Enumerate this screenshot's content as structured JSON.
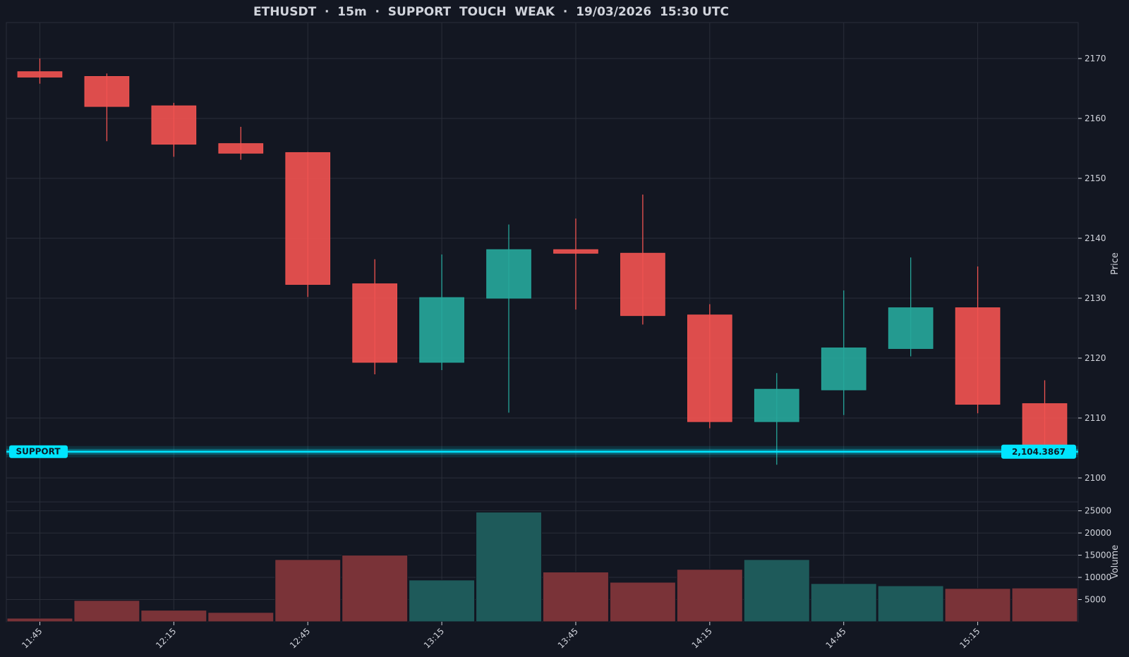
{
  "colors": {
    "background": "#131722",
    "grid": "#2a2e39",
    "bull": "#26a69a",
    "bear": "#ef5350",
    "bull_volume": "#1e5a5a",
    "bear_volume": "#7a3338",
    "support": "#00e5ff",
    "text": "#d1d4dc"
  },
  "chart_data": {
    "type": "candlestick",
    "title": "ETHUSDT  ·  15m  ·  SUPPORT  TOUCH  WEAK  ·  19/03/2026  15:30 UTC",
    "symbol": "ETHUSDT",
    "interval": "15m",
    "price_axis": {
      "label": "Price",
      "range": [
        2096,
        2176
      ],
      "ticks": [
        "2100",
        "2110",
        "2120",
        "2130",
        "2140",
        "2150",
        "2160",
        "2170"
      ],
      "position": "right"
    },
    "volume_axis": {
      "label": "Volume",
      "range": [
        0,
        27000
      ],
      "ticks": [
        "5000",
        "10000",
        "15000",
        "20000",
        "25000"
      ],
      "position": "right"
    },
    "x_axis": {
      "tick_labels": [
        "11:45",
        "12:15",
        "12:45",
        "13:15",
        "13:45",
        "14:15",
        "14:45",
        "15:15"
      ],
      "tick_candle_index": [
        0,
        2,
        4,
        6,
        8,
        10,
        12,
        14
      ]
    },
    "grid": true,
    "candles": [
      {
        "time": "11:45",
        "open": 2167.8,
        "high": 2170.0,
        "low": 2165.8,
        "close": 2166.9,
        "volume": 800
      },
      {
        "time": "12:00",
        "open": 2167.0,
        "high": 2167.5,
        "low": 2156.2,
        "close": 2162.0,
        "volume": 4800
      },
      {
        "time": "12:15",
        "open": 2162.1,
        "high": 2162.6,
        "low": 2153.6,
        "close": 2155.7,
        "volume": 2600
      },
      {
        "time": "12:30",
        "open": 2155.8,
        "high": 2158.6,
        "low": 2153.1,
        "close": 2154.2,
        "volume": 2100
      },
      {
        "time": "12:45",
        "open": 2154.3,
        "high": 2154.4,
        "low": 2130.2,
        "close": 2132.3,
        "volume": 14000
      },
      {
        "time": "13:00",
        "open": 2132.4,
        "high": 2136.5,
        "low": 2117.3,
        "close": 2119.3,
        "volume": 15000
      },
      {
        "time": "13:15",
        "open": 2119.3,
        "high": 2137.3,
        "low": 2118.0,
        "close": 2130.1,
        "volume": 9400
      },
      {
        "time": "13:30",
        "open": 2130.0,
        "high": 2142.3,
        "low": 2110.9,
        "close": 2138.1,
        "volume": 24700
      },
      {
        "time": "13:45",
        "open": 2138.1,
        "high": 2143.3,
        "low": 2128.1,
        "close": 2137.5,
        "volume": 11200
      },
      {
        "time": "14:00",
        "open": 2137.5,
        "high": 2147.3,
        "low": 2125.6,
        "close": 2127.1,
        "volume": 8900
      },
      {
        "time": "14:15",
        "open": 2127.2,
        "high": 2129.0,
        "low": 2108.3,
        "close": 2109.4,
        "volume": 11800
      },
      {
        "time": "14:30",
        "open": 2109.4,
        "high": 2117.5,
        "low": 2102.2,
        "close": 2114.8,
        "volume": 14000
      },
      {
        "time": "14:45",
        "open": 2114.7,
        "high": 2131.3,
        "low": 2110.5,
        "close": 2121.7,
        "volume": 8600
      },
      {
        "time": "15:00",
        "open": 2121.6,
        "high": 2136.8,
        "low": 2120.3,
        "close": 2128.4,
        "volume": 8100
      },
      {
        "time": "15:15",
        "open": 2128.4,
        "high": 2135.3,
        "low": 2110.8,
        "close": 2112.3,
        "volume": 7500
      },
      {
        "time": "15:30",
        "open": 2112.4,
        "high": 2116.3,
        "low": 2103.2,
        "close": 2104.5,
        "volume": 7600
      }
    ],
    "support": {
      "price": 2104.3867,
      "label": "SUPPORT",
      "value_label": "2,104.3867"
    }
  }
}
